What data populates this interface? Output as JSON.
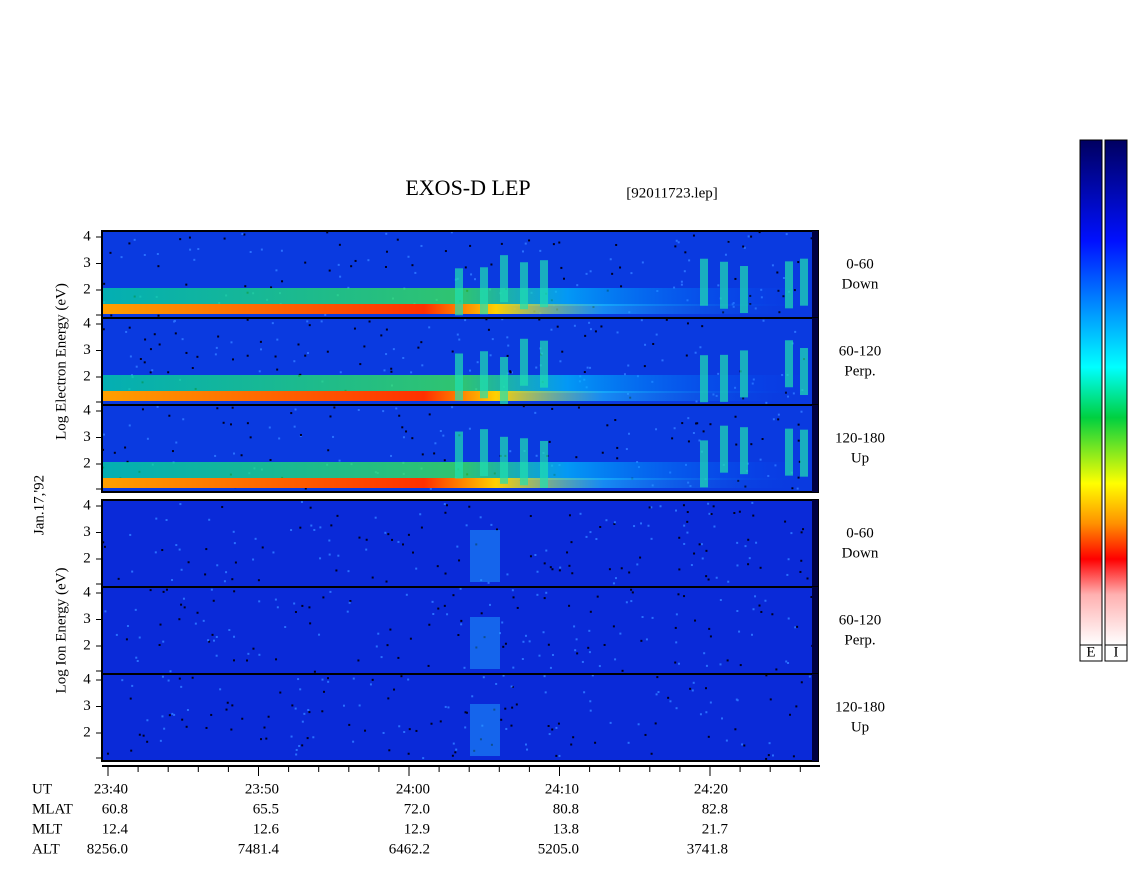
{
  "header": {
    "title": "EXOS-D LEP",
    "file": "[92011723.lep]"
  },
  "date_label": "Jan.17,'92",
  "groups": [
    {
      "axis_label": "Log  Electron  Energy (eV)",
      "kind": "electron",
      "panels": [
        {
          "pitch": "0-60",
          "direction": "Down"
        },
        {
          "pitch": "60-120",
          "direction": "Perp."
        },
        {
          "pitch": "120-180",
          "direction": "Up"
        }
      ]
    },
    {
      "axis_label": "Log  Ion  Energy (eV)",
      "kind": "ion",
      "panels": [
        {
          "pitch": "0-60",
          "direction": "Down"
        },
        {
          "pitch": "60-120",
          "direction": "Perp."
        },
        {
          "pitch": "120-180",
          "direction": "Up"
        }
      ]
    }
  ],
  "energy_ticks": [
    "4",
    "3",
    "2"
  ],
  "ephemeris": {
    "rows": [
      {
        "name": "UT",
        "values": [
          "23:40",
          "23:50",
          "24:00",
          "24:10",
          "24:20"
        ]
      },
      {
        "name": "MLAT",
        "values": [
          "60.8",
          "65.5",
          "72.0",
          "80.8",
          "82.8"
        ]
      },
      {
        "name": "MLT",
        "values": [
          "12.4",
          "12.6",
          "12.9",
          "13.8",
          "21.7"
        ]
      },
      {
        "name": "ALT",
        "values": [
          "8256.0",
          "7481.4",
          "6462.2",
          "5205.0",
          "3741.8"
        ]
      }
    ]
  },
  "colorbars": [
    "E",
    "I"
  ]
}
